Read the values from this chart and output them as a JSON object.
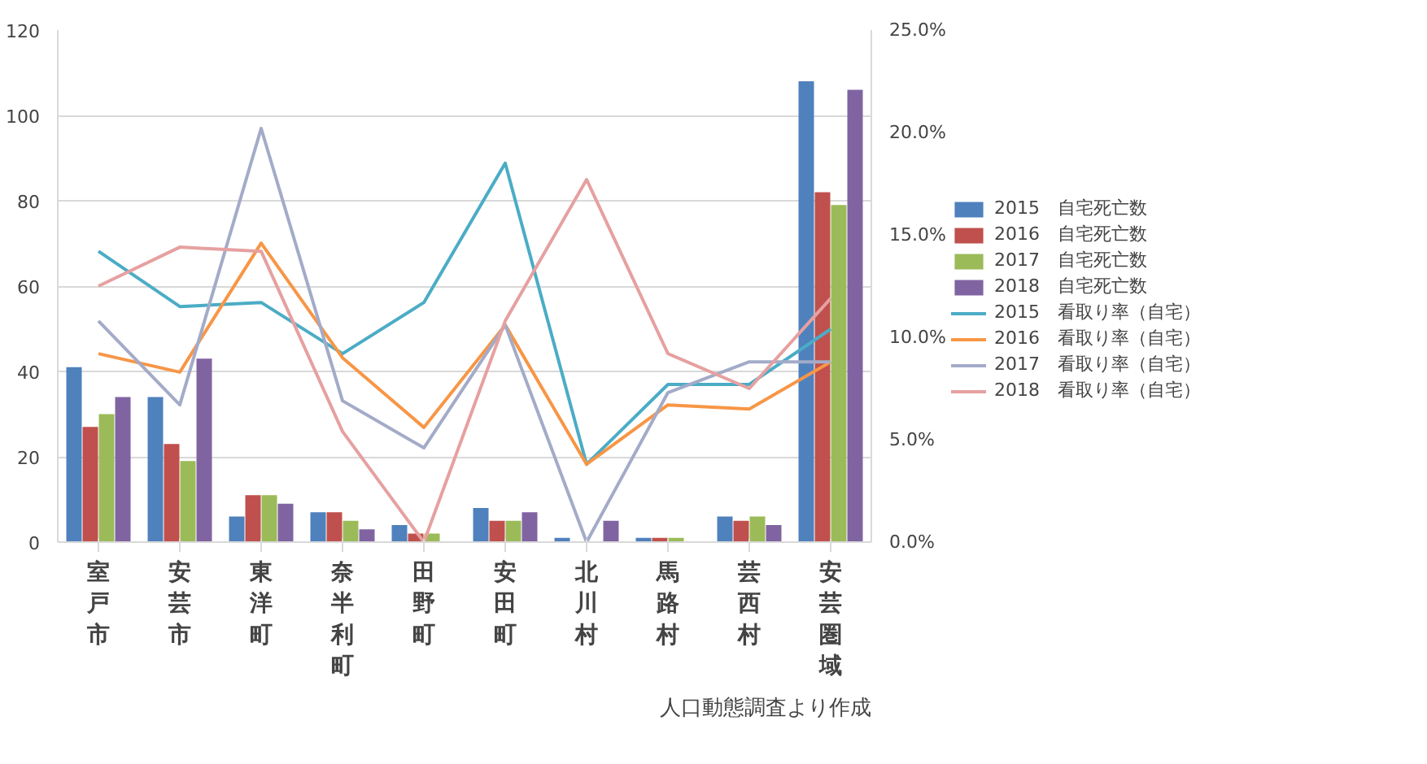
{
  "chart_data": {
    "type": "bar",
    "categories": [
      "室戸市",
      "安芸市",
      "東洋町",
      "奈半利町",
      "田野町",
      "安田町",
      "北川村",
      "馬路村",
      "芸西村",
      "安芸圏域"
    ],
    "series": [
      {
        "name": "2015　自宅死亡数",
        "color": "#4f81bd",
        "values": [
          41,
          34,
          6,
          7,
          4,
          8,
          1,
          1,
          6,
          108
        ]
      },
      {
        "name": "2016　自宅死亡数",
        "color": "#c0504d",
        "values": [
          27,
          23,
          11,
          7,
          2,
          5,
          0,
          1,
          5,
          82
        ]
      },
      {
        "name": "2017　自宅死亡数",
        "color": "#9bbb59",
        "values": [
          30,
          19,
          11,
          5,
          2,
          5,
          0,
          1,
          6,
          79
        ]
      },
      {
        "name": "2018　自宅死亡数",
        "color": "#8064a2",
        "values": [
          34,
          43,
          9,
          3,
          0,
          7,
          5,
          0,
          4,
          106
        ]
      },
      {
        "name": "2015　看取り率（自宅）",
        "type": "line",
        "axis": "y2",
        "color": "#4bacc6",
        "values": [
          14.2,
          11.5,
          11.7,
          9.2,
          11.7,
          18.5,
          3.8,
          7.7,
          7.7,
          10.4
        ]
      },
      {
        "name": "2016　看取り率（自宅）",
        "type": "line",
        "axis": "y2",
        "color": "#f79646",
        "values": [
          9.2,
          8.3,
          14.6,
          9.0,
          5.6,
          10.6,
          3.8,
          6.7,
          6.5,
          8.8
        ]
      },
      {
        "name": "2017　看取り率（自宅）",
        "type": "line",
        "axis": "y2",
        "color": "#a3abc8",
        "values": [
          10.8,
          6.7,
          20.2,
          6.9,
          4.6,
          10.6,
          0,
          7.3,
          8.8,
          8.8
        ]
      },
      {
        "name": "2018　看取り率（自宅）",
        "type": "line",
        "axis": "y2",
        "color": "#e6a0a0",
        "values": [
          12.5,
          14.4,
          14.2,
          5.4,
          0,
          10.8,
          17.7,
          9.2,
          7.5,
          11.9
        ]
      }
    ],
    "ylim": [
      0,
      120
    ],
    "yticks": [
      0,
      20,
      40,
      60,
      80,
      100,
      120
    ],
    "y2lim": [
      0,
      25
    ],
    "y2ticks": [
      {
        "value": 0,
        "label": "0.0%"
      },
      {
        "value": 5,
        "label": "5.0%"
      },
      {
        "value": 10,
        "label": "10.0%"
      },
      {
        "value": 15,
        "label": "15.0%"
      },
      {
        "value": 20,
        "label": "20.0%"
      },
      {
        "value": 25,
        "label": "25.0%"
      }
    ],
    "grid": "y",
    "legend": "right",
    "marker": "none",
    "line_style": "solid",
    "annotations": [
      "人口動態調査より作成"
    ]
  }
}
